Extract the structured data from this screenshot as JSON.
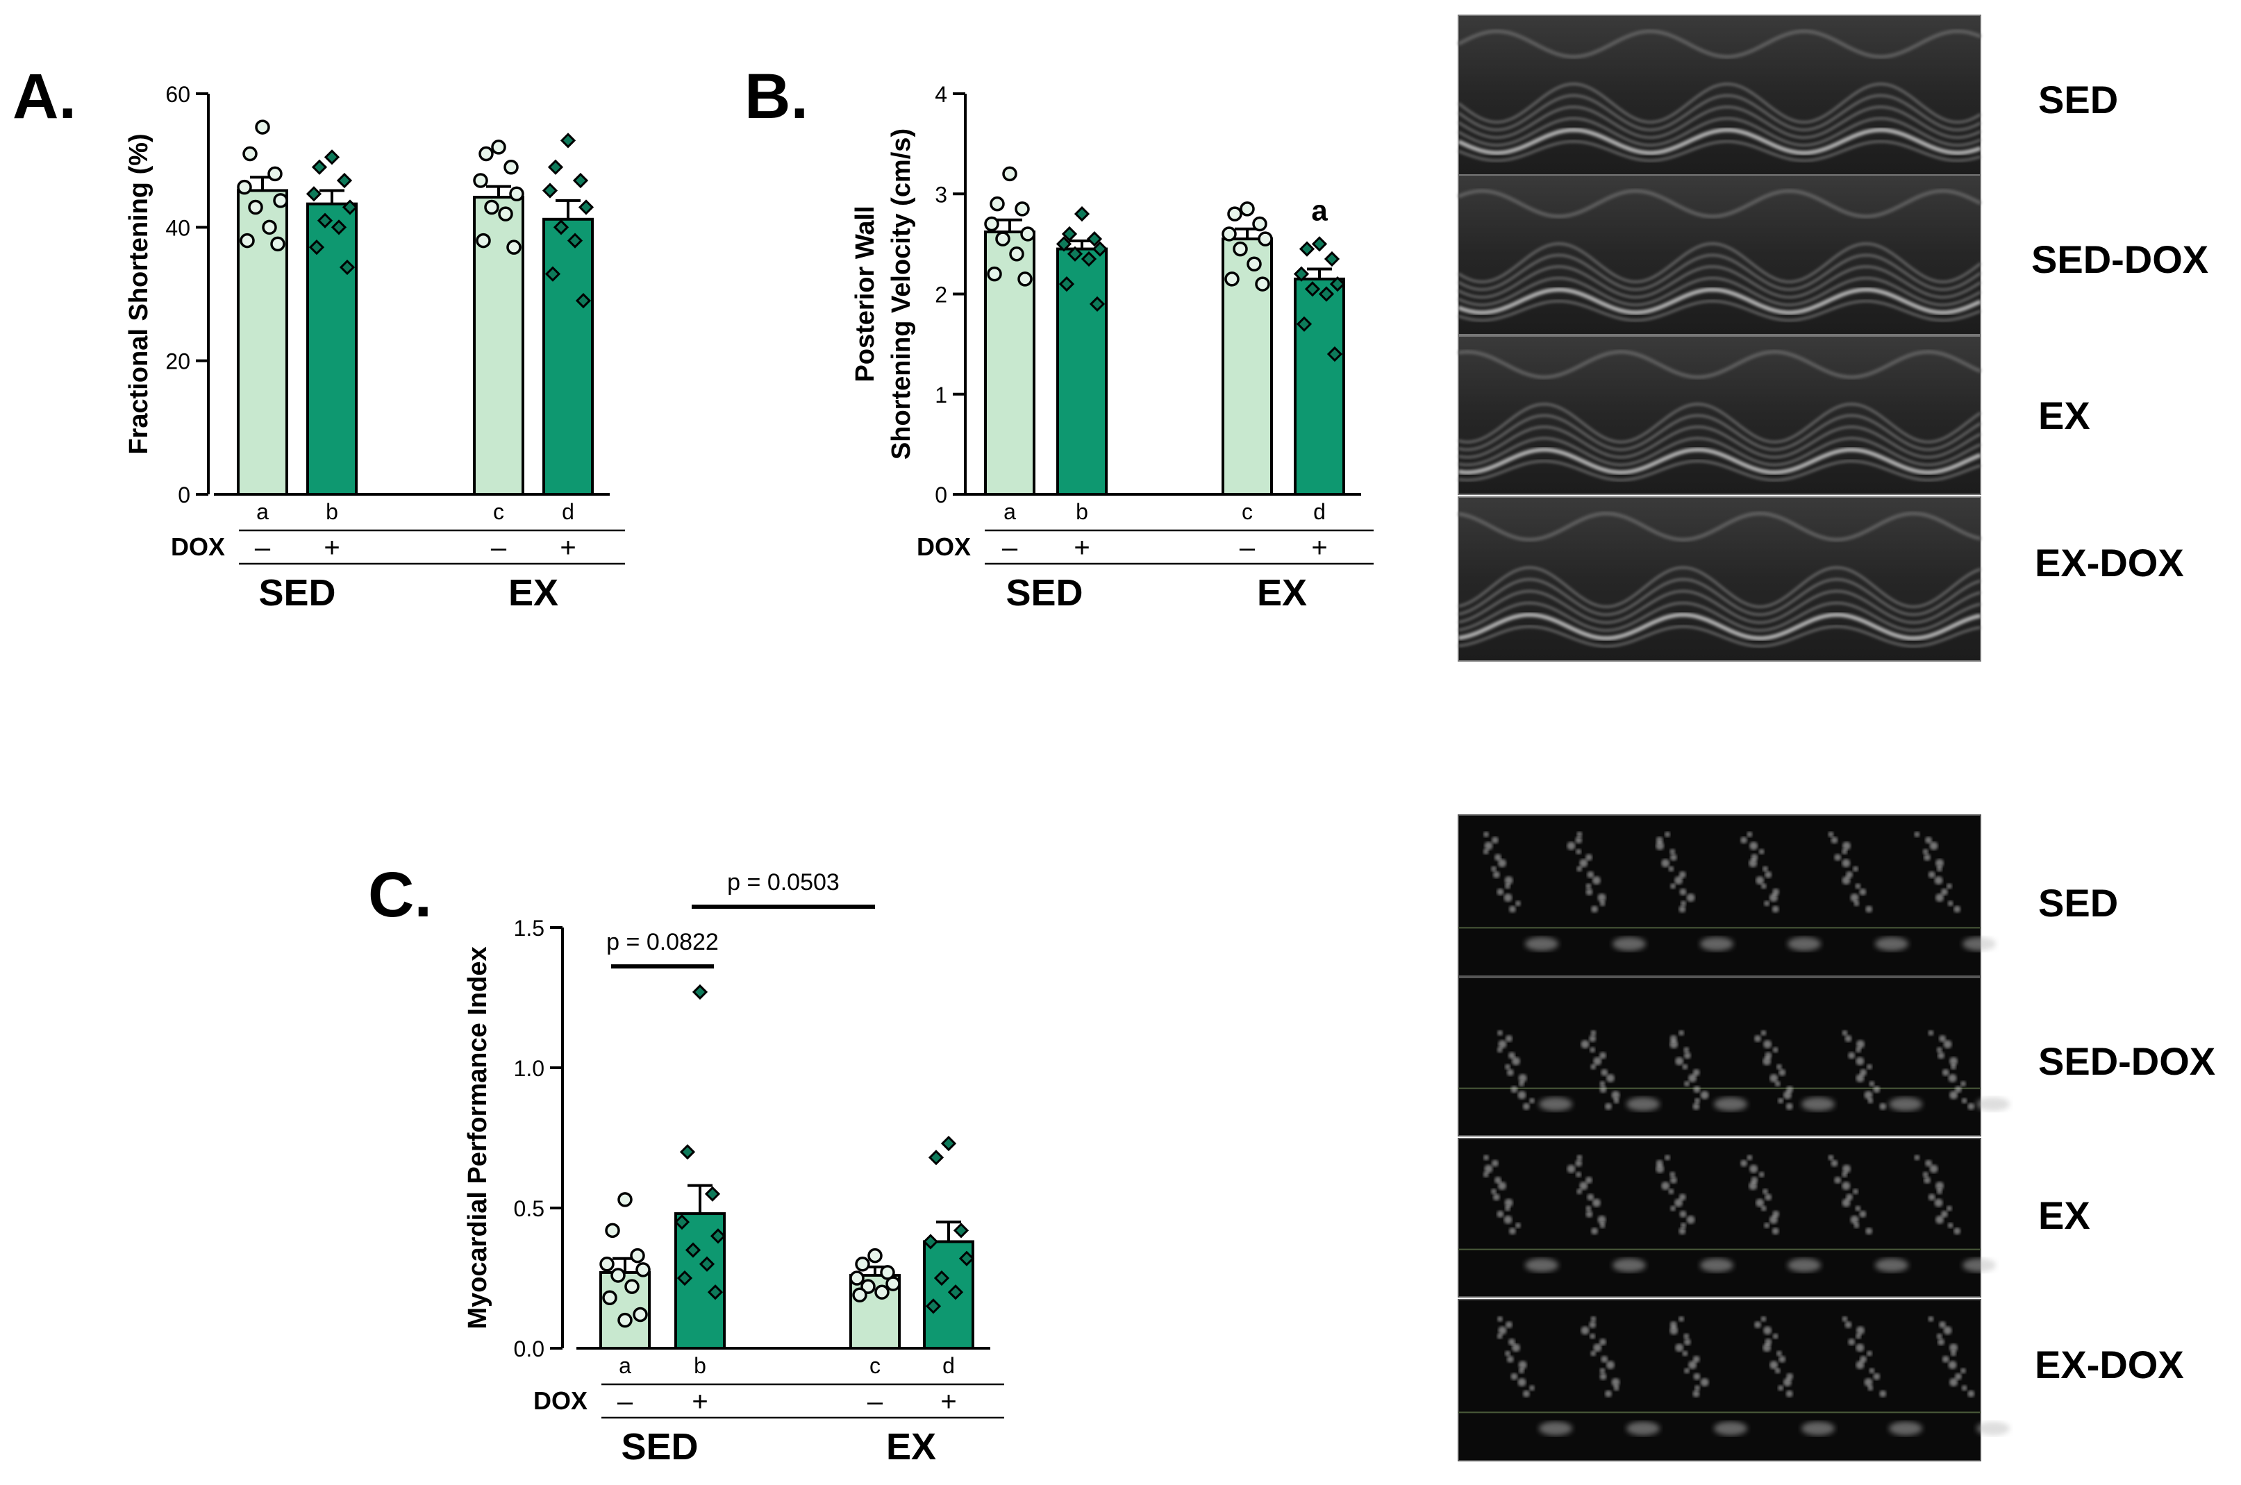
{
  "chart_data": [
    {
      "type": "bar",
      "panel": "A.",
      "ylabel": "Fractional Shortening (%)",
      "ylim": [
        0,
        60
      ],
      "yticks": [
        0,
        20,
        40,
        60
      ],
      "categories": [
        "a",
        "b",
        "c",
        "d"
      ],
      "dox_label": "DOX",
      "dox": [
        "–",
        "+",
        "–",
        "+"
      ],
      "groups": [
        "SED",
        "EX"
      ],
      "values": [
        45.5,
        43.5,
        44.5,
        41.2
      ],
      "sem": [
        2.0,
        2.0,
        1.6,
        2.8
      ],
      "points": [
        [
          55,
          51,
          48,
          46,
          44,
          43,
          40,
          38,
          37.5
        ],
        [
          50.5,
          49,
          47,
          45,
          43,
          41,
          40,
          37,
          34
        ],
        [
          52,
          51,
          49,
          47,
          45,
          43,
          42,
          38,
          37
        ],
        [
          53,
          49,
          47,
          45.5,
          43,
          40,
          38,
          33,
          29
        ]
      ],
      "colors": {
        "sed": "#c8e8cf",
        "dox": "#0e9870"
      }
    },
    {
      "type": "bar",
      "panel": "B.",
      "ylabel": [
        "Posterior Wall",
        "Shortening Velocity (cm/s)"
      ],
      "ylim": [
        0,
        4
      ],
      "yticks": [
        0,
        1,
        2,
        3,
        4
      ],
      "categories": [
        "a",
        "b",
        "c",
        "d"
      ],
      "dox_label": "DOX",
      "dox": [
        "–",
        "+",
        "–",
        "+"
      ],
      "groups": [
        "SED",
        "EX"
      ],
      "values": [
        2.62,
        2.45,
        2.55,
        2.15
      ],
      "sem": [
        0.12,
        0.08,
        0.1,
        0.1
      ],
      "points": [
        [
          3.2,
          2.9,
          2.85,
          2.7,
          2.6,
          2.55,
          2.4,
          2.2,
          2.15
        ],
        [
          2.8,
          2.6,
          2.55,
          2.5,
          2.45,
          2.4,
          2.35,
          2.1,
          1.9
        ],
        [
          2.85,
          2.8,
          2.7,
          2.6,
          2.55,
          2.45,
          2.3,
          2.15,
          2.1
        ],
        [
          2.5,
          2.45,
          2.35,
          2.2,
          2.1,
          2.05,
          2.0,
          1.7,
          1.4
        ]
      ],
      "annotations": [
        {
          "category": "d",
          "text": "a"
        }
      ],
      "colors": {
        "sed": "#c8e8cf",
        "dox": "#0e9870"
      }
    },
    {
      "type": "bar",
      "panel": "C.",
      "ylabel": "Myocardial Performance Index",
      "ylim": [
        0,
        1.5
      ],
      "yticks": [
        "0.0",
        "0.5",
        "1.0",
        "1.5"
      ],
      "categories": [
        "a",
        "b",
        "c",
        "d"
      ],
      "dox_label": "DOX",
      "dox": [
        "–",
        "+",
        "–",
        "+"
      ],
      "groups": [
        "SED",
        "EX"
      ],
      "values": [
        0.27,
        0.48,
        0.26,
        0.38
      ],
      "sem": [
        0.05,
        0.1,
        0.03,
        0.07
      ],
      "points": [
        [
          0.53,
          0.42,
          0.33,
          0.3,
          0.28,
          0.26,
          0.22,
          0.18,
          0.12,
          0.1
        ],
        [
          1.27,
          0.7,
          0.55,
          0.45,
          0.4,
          0.35,
          0.3,
          0.25,
          0.2
        ],
        [
          0.33,
          0.3,
          0.27,
          0.25,
          0.23,
          0.22,
          0.2,
          0.19
        ],
        [
          0.73,
          0.68,
          0.42,
          0.38,
          0.32,
          0.25,
          0.2,
          0.15
        ]
      ],
      "brackets": [
        {
          "from": "a",
          "to": "b",
          "text": "p = 0.0822"
        },
        {
          "from": "b",
          "to": "c",
          "text": "p = 0.0503"
        }
      ],
      "colors": {
        "sed": "#c8e8cf",
        "dox": "#0e9870"
      }
    }
  ],
  "echo_panels": {
    "mmode_labels": [
      "SED",
      "SED-DOX",
      "EX",
      "EX-DOX"
    ],
    "doppler_labels": [
      "SED",
      "SED-DOX",
      "EX",
      "EX-DOX"
    ]
  }
}
